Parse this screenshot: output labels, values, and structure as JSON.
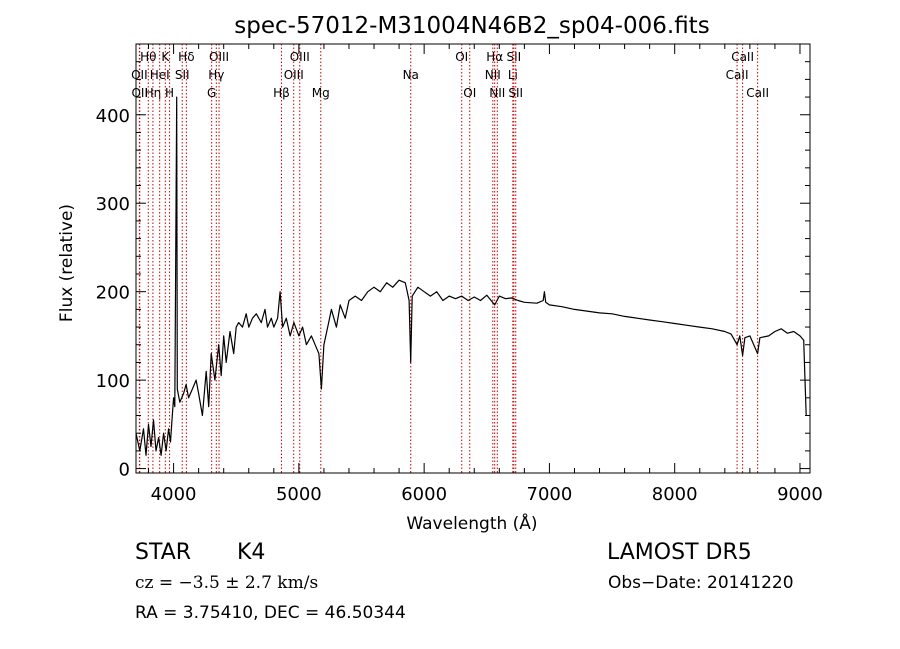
{
  "chart_data": {
    "type": "line",
    "title": "spec-57012-M31004N46B2_sp04-006.fits",
    "xlabel": "Wavelength (Å)",
    "ylabel": "Flux (relative)",
    "xlim": [
      3700,
      9080
    ],
    "ylim": [
      -5,
      480
    ],
    "xticks": [
      4000,
      5000,
      6000,
      7000,
      8000,
      9000
    ],
    "yticks": [
      0,
      100,
      200,
      300,
      400
    ],
    "grid": false,
    "line_color": "#000000",
    "marker_color": "#cc0000",
    "series": [
      {
        "values": [
          [
            3700,
            40
          ],
          [
            3730,
            20
          ],
          [
            3760,
            45
          ],
          [
            3780,
            15
          ],
          [
            3800,
            50
          ],
          [
            3820,
            25
          ],
          [
            3840,
            55
          ],
          [
            3860,
            20
          ],
          [
            3880,
            35
          ],
          [
            3900,
            15
          ],
          [
            3920,
            40
          ],
          [
            3940,
            20
          ],
          [
            3960,
            45
          ],
          [
            3975,
            30
          ],
          [
            3990,
            60
          ],
          [
            4000,
            80
          ],
          [
            4010,
            70
          ],
          [
            4025,
            420
          ],
          [
            4030,
            90
          ],
          [
            4050,
            75
          ],
          [
            4080,
            85
          ],
          [
            4100,
            95
          ],
          [
            4120,
            80
          ],
          [
            4150,
            90
          ],
          [
            4180,
            100
          ],
          [
            4200,
            85
          ],
          [
            4230,
            60
          ],
          [
            4260,
            110
          ],
          [
            4280,
            70
          ],
          [
            4300,
            130
          ],
          [
            4330,
            100
          ],
          [
            4360,
            140
          ],
          [
            4380,
            105
          ],
          [
            4400,
            150
          ],
          [
            4420,
            120
          ],
          [
            4450,
            155
          ],
          [
            4480,
            130
          ],
          [
            4500,
            160
          ],
          [
            4520,
            165
          ],
          [
            4550,
            160
          ],
          [
            4580,
            175
          ],
          [
            4600,
            160
          ],
          [
            4630,
            170
          ],
          [
            4660,
            175
          ],
          [
            4700,
            165
          ],
          [
            4730,
            180
          ],
          [
            4750,
            160
          ],
          [
            4780,
            170
          ],
          [
            4800,
            160
          ],
          [
            4830,
            170
          ],
          [
            4850,
            200
          ],
          [
            4870,
            160
          ],
          [
            4900,
            170
          ],
          [
            4930,
            150
          ],
          [
            4960,
            165
          ],
          [
            5000,
            150
          ],
          [
            5030,
            160
          ],
          [
            5060,
            140
          ],
          [
            5100,
            150
          ],
          [
            5130,
            140
          ],
          [
            5160,
            130
          ],
          [
            5180,
            90
          ],
          [
            5200,
            140
          ],
          [
            5230,
            160
          ],
          [
            5260,
            180
          ],
          [
            5300,
            160
          ],
          [
            5330,
            185
          ],
          [
            5370,
            170
          ],
          [
            5400,
            190
          ],
          [
            5450,
            195
          ],
          [
            5500,
            190
          ],
          [
            5550,
            200
          ],
          [
            5600,
            205
          ],
          [
            5650,
            200
          ],
          [
            5700,
            210
          ],
          [
            5750,
            205
          ],
          [
            5800,
            213
          ],
          [
            5850,
            210
          ],
          [
            5880,
            190
          ],
          [
            5893,
            120
          ],
          [
            5905,
            195
          ],
          [
            5950,
            205
          ],
          [
            6000,
            200
          ],
          [
            6050,
            195
          ],
          [
            6100,
            200
          ],
          [
            6150,
            190
          ],
          [
            6200,
            195
          ],
          [
            6250,
            192
          ],
          [
            6300,
            195
          ],
          [
            6350,
            190
          ],
          [
            6400,
            194
          ],
          [
            6450,
            190
          ],
          [
            6500,
            196
          ],
          [
            6563,
            185
          ],
          [
            6600,
            195
          ],
          [
            6650,
            192
          ],
          [
            6700,
            193
          ],
          [
            6750,
            190
          ],
          [
            6800,
            188
          ],
          [
            6900,
            187
          ],
          [
            6950,
            190
          ],
          [
            6960,
            200
          ],
          [
            6970,
            188
          ],
          [
            7000,
            185
          ],
          [
            7100,
            183
          ],
          [
            7200,
            180
          ],
          [
            7300,
            178
          ],
          [
            7400,
            176
          ],
          [
            7500,
            175
          ],
          [
            7600,
            172
          ],
          [
            7700,
            170
          ],
          [
            7800,
            168
          ],
          [
            7900,
            166
          ],
          [
            8000,
            164
          ],
          [
            8100,
            162
          ],
          [
            8200,
            160
          ],
          [
            8300,
            158
          ],
          [
            8400,
            155
          ],
          [
            8450,
            152
          ],
          [
            8498,
            140
          ],
          [
            8520,
            150
          ],
          [
            8542,
            128
          ],
          [
            8560,
            148
          ],
          [
            8600,
            150
          ],
          [
            8662,
            130
          ],
          [
            8680,
            148
          ],
          [
            8750,
            150
          ],
          [
            8800,
            155
          ],
          [
            8850,
            158
          ],
          [
            8900,
            153
          ],
          [
            8950,
            155
          ],
          [
            9000,
            150
          ],
          [
            9030,
            145
          ],
          [
            9040,
            100
          ],
          [
            9050,
            60
          ]
        ]
      }
    ],
    "line_markers": [
      {
        "name": "Hθ",
        "wavelength": 3798,
        "row": 1
      },
      {
        "name": "OII",
        "wavelength": 3727,
        "row": 2
      },
      {
        "name": "OII",
        "wavelength": 3730,
        "row": 3
      },
      {
        "name": "Hη",
        "wavelength": 3835,
        "row": 3
      },
      {
        "name": "HeI",
        "wavelength": 3889,
        "row": 2
      },
      {
        "name": "K",
        "wavelength": 3934,
        "row": 1
      },
      {
        "name": "H",
        "wavelength": 3968,
        "row": 3
      },
      {
        "name": "SII",
        "wavelength": 4069,
        "row": 2
      },
      {
        "name": "Hδ",
        "wavelength": 4102,
        "row": 1
      },
      {
        "name": "OIII",
        "wavelength": 4363,
        "row": 1
      },
      {
        "name": "Hγ",
        "wavelength": 4341,
        "row": 2
      },
      {
        "name": "G",
        "wavelength": 4304,
        "row": 3
      },
      {
        "name": "Hβ",
        "wavelength": 4861,
        "row": 3
      },
      {
        "name": "OIII",
        "wavelength": 5007,
        "row": 1
      },
      {
        "name": "OIII",
        "wavelength": 4959,
        "row": 2
      },
      {
        "name": "Mg",
        "wavelength": 5175,
        "row": 3
      },
      {
        "name": "Na",
        "wavelength": 5893,
        "row": 2
      },
      {
        "name": "OI",
        "wavelength": 6300,
        "row": 1
      },
      {
        "name": "OI",
        "wavelength": 6364,
        "row": 3
      },
      {
        "name": "Hα",
        "wavelength": 6563,
        "row": 1
      },
      {
        "name": "NII",
        "wavelength": 6548,
        "row": 2
      },
      {
        "name": "NII",
        "wavelength": 6584,
        "row": 3
      },
      {
        "name": "SII",
        "wavelength": 6716,
        "row": 1
      },
      {
        "name": "Li",
        "wavelength": 6708,
        "row": 2
      },
      {
        "name": "SII",
        "wavelength": 6731,
        "row": 3
      },
      {
        "name": "CaII",
        "wavelength": 8542,
        "row": 1
      },
      {
        "name": "CaII",
        "wavelength": 8498,
        "row": 2
      },
      {
        "name": "CaII",
        "wavelength": 8662,
        "row": 3
      }
    ]
  },
  "info": {
    "class": "STAR",
    "subclass": "K4",
    "cz": "cz = −3.5 ± 2.7 km/s",
    "ra_dec": "RA =    3.75410, DEC =  46.50344",
    "survey": "LAMOST  DR5",
    "obs_date": "Obs−Date: 20141220"
  }
}
